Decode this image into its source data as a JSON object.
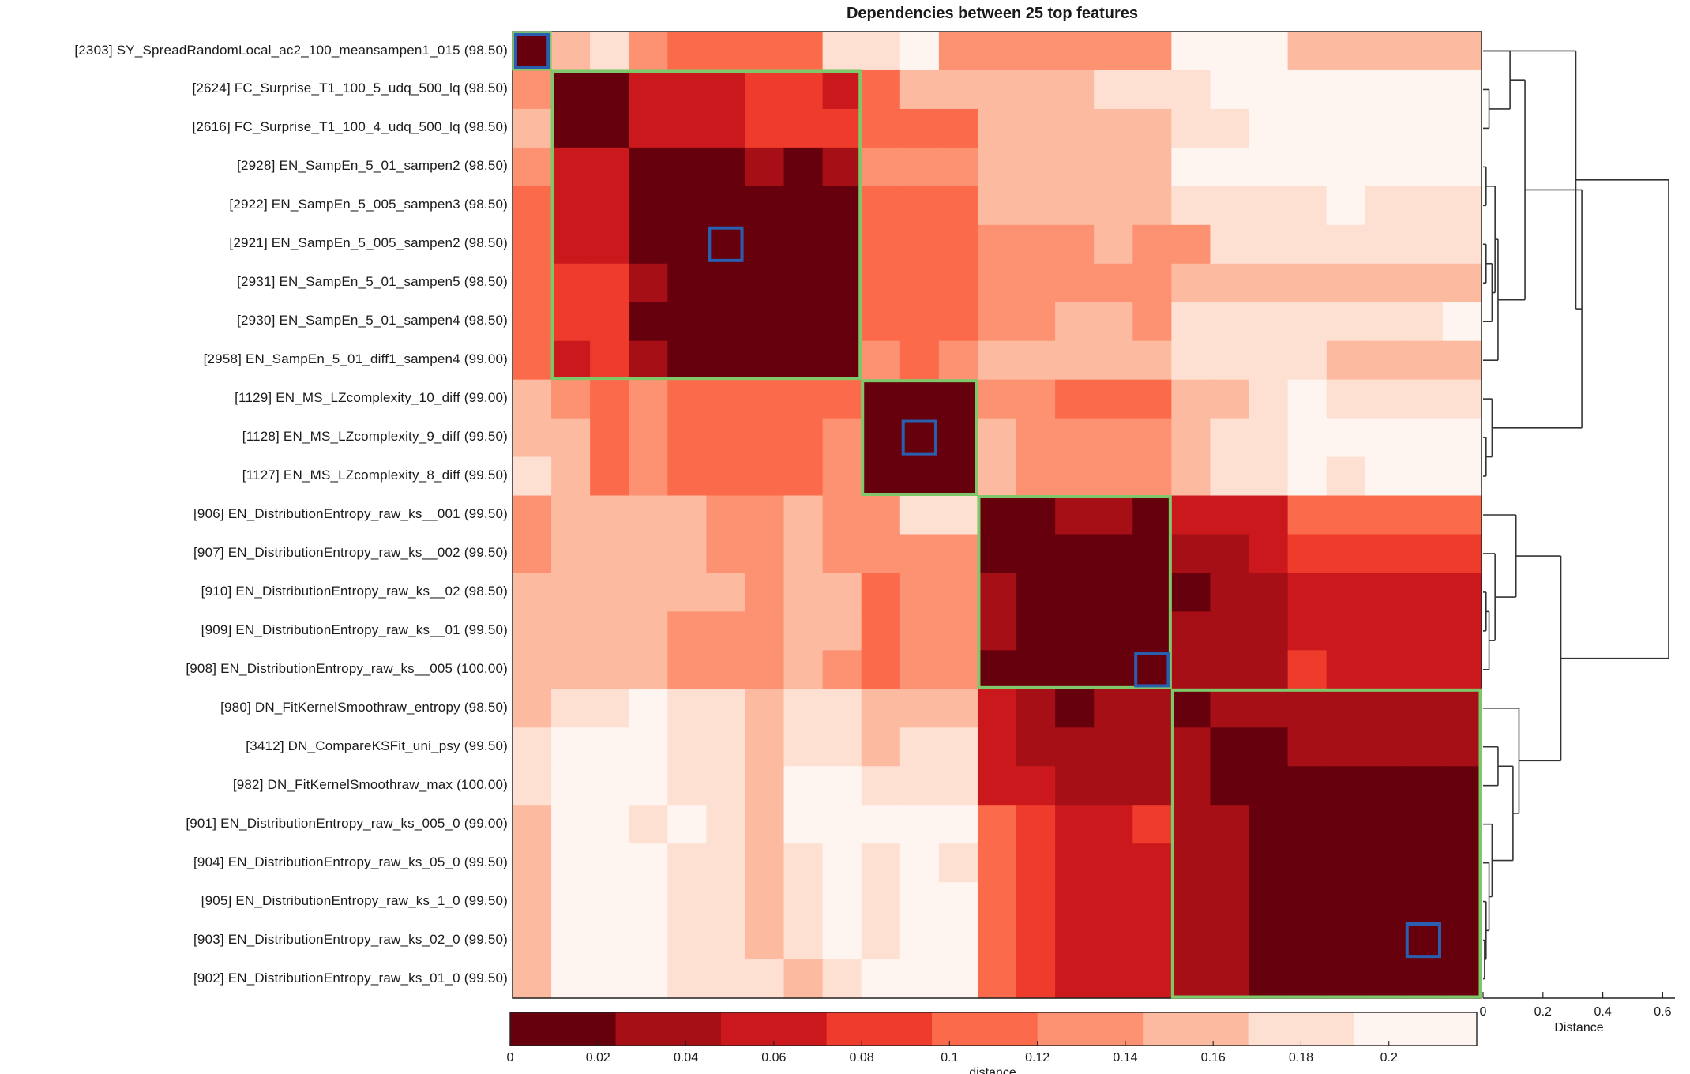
{
  "chart_data": {
    "type": "heatmap",
    "title": "Dependencies between 25 top features",
    "row_labels": [
      "[2303] SY_SpreadRandomLocal_ac2_100_meansampen1_015 (98.50)",
      "[2624] FC_Surprise_T1_100_5_udq_500_lq (98.50)",
      "[2616] FC_Surprise_T1_100_4_udq_500_lq (98.50)",
      "[2928] EN_SampEn_5_01_sampen2 (98.50)",
      "[2922] EN_SampEn_5_005_sampen3 (98.50)",
      "[2921] EN_SampEn_5_005_sampen2 (98.50)",
      "[2931] EN_SampEn_5_01_sampen5 (98.50)",
      "[2930] EN_SampEn_5_01_sampen4 (98.50)",
      "[2958] EN_SampEn_5_01_diff1_sampen4 (99.00)",
      "[1129] EN_MS_LZcomplexity_10_diff (99.00)",
      "[1128] EN_MS_LZcomplexity_9_diff (99.50)",
      "[1127] EN_MS_LZcomplexity_8_diff (99.50)",
      "[906] EN_DistributionEntropy_raw_ks__001 (99.50)",
      "[907] EN_DistributionEntropy_raw_ks__002 (99.50)",
      "[910] EN_DistributionEntropy_raw_ks__02 (98.50)",
      "[909] EN_DistributionEntropy_raw_ks__01 (99.50)",
      "[908] EN_DistributionEntropy_raw_ks__005 (100.00)",
      "[980] DN_FitKernelSmoothraw_entropy (98.50)",
      "[3412] DN_CompareKSFit_uni_psy (99.50)",
      "[982] DN_FitKernelSmoothraw_max (100.00)",
      "[901] EN_DistributionEntropy_raw_ks_005_0 (99.00)",
      "[904] EN_DistributionEntropy_raw_ks_05_0 (99.50)",
      "[905] EN_DistributionEntropy_raw_ks_1_0 (99.50)",
      "[903] EN_DistributionEntropy_raw_ks_02_0 (99.50)",
      "[902] EN_DistributionEntropy_raw_ks_01_0 (99.50)"
    ],
    "bin_matrix": [
      [
        0,
        6,
        7,
        5,
        4,
        4,
        4,
        4,
        7,
        7,
        8,
        5,
        5,
        5,
        5,
        5,
        5,
        8,
        8,
        8,
        6,
        6,
        6,
        6,
        6
      ],
      [
        5,
        0,
        0,
        2,
        2,
        2,
        3,
        3,
        2,
        4,
        6,
        6,
        6,
        6,
        6,
        7,
        7,
        7,
        8,
        8,
        8,
        8,
        8,
        8,
        8
      ],
      [
        6,
        0,
        0,
        2,
        2,
        2,
        3,
        3,
        3,
        4,
        4,
        4,
        6,
        6,
        6,
        6,
        6,
        7,
        7,
        8,
        8,
        8,
        8,
        8,
        8
      ],
      [
        5,
        2,
        2,
        0,
        0,
        0,
        1,
        0,
        1,
        5,
        5,
        5,
        6,
        6,
        6,
        6,
        6,
        8,
        8,
        8,
        8,
        8,
        8,
        8,
        8
      ],
      [
        4,
        2,
        2,
        0,
        0,
        0,
        0,
        0,
        0,
        4,
        4,
        4,
        6,
        6,
        6,
        6,
        6,
        7,
        7,
        7,
        7,
        8,
        7,
        7,
        7
      ],
      [
        4,
        2,
        2,
        0,
        0,
        0,
        0,
        0,
        0,
        4,
        4,
        4,
        5,
        5,
        5,
        6,
        5,
        5,
        7,
        7,
        7,
        7,
        7,
        7,
        7
      ],
      [
        4,
        3,
        3,
        1,
        0,
        0,
        0,
        0,
        0,
        4,
        4,
        4,
        5,
        5,
        5,
        5,
        5,
        6,
        6,
        6,
        6,
        6,
        6,
        6,
        6
      ],
      [
        4,
        3,
        3,
        0,
        0,
        0,
        0,
        0,
        0,
        4,
        4,
        4,
        5,
        5,
        6,
        6,
        5,
        7,
        7,
        7,
        7,
        7,
        7,
        7,
        8
      ],
      [
        4,
        2,
        3,
        1,
        0,
        0,
        0,
        0,
        0,
        5,
        4,
        5,
        6,
        6,
        6,
        6,
        6,
        7,
        7,
        7,
        7,
        6,
        6,
        6,
        6
      ],
      [
        6,
        5,
        4,
        5,
        4,
        4,
        4,
        4,
        4,
        0,
        0,
        0,
        5,
        5,
        4,
        4,
        4,
        6,
        6,
        7,
        8,
        7,
        7,
        7,
        7
      ],
      [
        6,
        6,
        4,
        5,
        4,
        4,
        4,
        4,
        5,
        0,
        0,
        0,
        6,
        5,
        5,
        5,
        5,
        6,
        7,
        7,
        8,
        8,
        8,
        8,
        8
      ],
      [
        7,
        6,
        4,
        5,
        4,
        4,
        4,
        4,
        5,
        0,
        0,
        0,
        6,
        5,
        5,
        5,
        5,
        6,
        7,
        7,
        8,
        7,
        8,
        8,
        8
      ],
      [
        5,
        6,
        6,
        6,
        6,
        5,
        5,
        6,
        5,
        5,
        7,
        7,
        0,
        0,
        1,
        1,
        0,
        2,
        2,
        2,
        4,
        4,
        4,
        4,
        4
      ],
      [
        5,
        6,
        6,
        6,
        6,
        5,
        5,
        6,
        5,
        5,
        5,
        5,
        0,
        0,
        0,
        0,
        0,
        1,
        1,
        2,
        3,
        3,
        3,
        3,
        3
      ],
      [
        6,
        6,
        6,
        6,
        6,
        6,
        5,
        6,
        6,
        4,
        5,
        5,
        1,
        0,
        0,
        0,
        0,
        0,
        1,
        1,
        2,
        2,
        2,
        2,
        2
      ],
      [
        6,
        6,
        6,
        6,
        5,
        5,
        5,
        6,
        6,
        4,
        5,
        5,
        1,
        0,
        0,
        0,
        0,
        1,
        1,
        1,
        2,
        2,
        2,
        2,
        2
      ],
      [
        6,
        6,
        6,
        6,
        5,
        5,
        5,
        6,
        5,
        4,
        5,
        5,
        0,
        0,
        0,
        0,
        0,
        1,
        1,
        1,
        3,
        2,
        2,
        2,
        2
      ],
      [
        6,
        7,
        7,
        8,
        7,
        7,
        6,
        7,
        7,
        6,
        6,
        6,
        2,
        1,
        0,
        1,
        1,
        0,
        1,
        1,
        1,
        1,
        1,
        1,
        1
      ],
      [
        7,
        8,
        8,
        8,
        7,
        7,
        6,
        7,
        7,
        6,
        7,
        7,
        2,
        1,
        1,
        1,
        1,
        1,
        0,
        0,
        1,
        1,
        1,
        1,
        1
      ],
      [
        7,
        8,
        8,
        8,
        7,
        7,
        6,
        8,
        8,
        7,
        7,
        7,
        2,
        2,
        1,
        1,
        1,
        1,
        0,
        0,
        0,
        0,
        0,
        0,
        0
      ],
      [
        6,
        8,
        8,
        7,
        8,
        7,
        6,
        8,
        8,
        8,
        8,
        8,
        4,
        3,
        2,
        2,
        3,
        1,
        1,
        0,
        0,
        0,
        0,
        0,
        0
      ],
      [
        6,
        8,
        8,
        8,
        7,
        7,
        6,
        7,
        8,
        7,
        8,
        7,
        4,
        3,
        2,
        2,
        2,
        1,
        1,
        0,
        0,
        0,
        0,
        0,
        0
      ],
      [
        6,
        8,
        8,
        8,
        7,
        7,
        6,
        7,
        8,
        7,
        8,
        8,
        4,
        3,
        2,
        2,
        2,
        1,
        1,
        0,
        0,
        0,
        0,
        0,
        0
      ],
      [
        6,
        8,
        8,
        8,
        7,
        7,
        6,
        7,
        8,
        7,
        8,
        8,
        4,
        3,
        2,
        2,
        2,
        1,
        1,
        0,
        0,
        0,
        0,
        0,
        0
      ],
      [
        6,
        8,
        8,
        8,
        7,
        7,
        7,
        6,
        7,
        8,
        8,
        8,
        4,
        3,
        2,
        2,
        2,
        1,
        1,
        0,
        0,
        0,
        0,
        0,
        0
      ]
    ],
    "colorbar": {
      "label": "distance",
      "min": 0,
      "max": 0.22,
      "bin_edges": [
        0,
        0.024,
        0.048,
        0.072,
        0.096,
        0.12,
        0.144,
        0.168,
        0.192,
        0.22
      ],
      "ticks": [
        {
          "v": 0,
          "label": "0"
        },
        {
          "v": 0.02,
          "label": "0.02"
        },
        {
          "v": 0.04,
          "label": "0.04"
        },
        {
          "v": 0.06,
          "label": "0.06"
        },
        {
          "v": 0.08,
          "label": "0.08"
        },
        {
          "v": 0.1,
          "label": "0.1"
        },
        {
          "v": 0.12,
          "label": "0.12"
        },
        {
          "v": 0.14,
          "label": "0.14"
        },
        {
          "v": 0.16,
          "label": "0.16"
        },
        {
          "v": 0.18,
          "label": "0.18"
        },
        {
          "v": 0.2,
          "label": "0.2"
        }
      ],
      "colors": [
        "#67000d",
        "#a50f15",
        "#cb181d",
        "#ef3b2c",
        "#fb6a4a",
        "#fc9272",
        "#fcbba1",
        "#fee0d2",
        "#fff5f0"
      ]
    },
    "clusters": [
      {
        "start": 0,
        "end": 0
      },
      {
        "start": 1,
        "end": 8
      },
      {
        "start": 9,
        "end": 11
      },
      {
        "start": 12,
        "end": 16
      },
      {
        "start": 17,
        "end": 24
      }
    ],
    "cluster_centers": [
      0,
      5,
      10,
      16,
      23
    ],
    "dendrogram": {
      "xlabel": "Distance",
      "xticks": [
        {
          "v": 0,
          "label": "0"
        },
        {
          "v": 0.2,
          "label": "0.2"
        },
        {
          "v": 0.4,
          "label": "0.4"
        },
        {
          "v": 0.6,
          "label": "0.6"
        }
      ],
      "xlim": [
        0,
        0.62
      ],
      "merges": [
        {
          "a": "l2",
          "b": "l3",
          "h": 0.02,
          "id": "m1"
        },
        {
          "a": "l4",
          "b": "l5",
          "h": 0.01,
          "id": "m2"
        },
        {
          "a": "l6",
          "b": "l7",
          "h": 0.01,
          "id": "m3"
        },
        {
          "a": "m3",
          "b": "l8",
          "h": 0.03,
          "id": "m4"
        },
        {
          "a": "m2",
          "b": "m4",
          "h": 0.04,
          "id": "m5"
        },
        {
          "a": "m5",
          "b": "l9",
          "h": 0.05,
          "id": "m6"
        },
        {
          "a": "l1",
          "b": "m1",
          "h": 0.09,
          "id": "m7"
        },
        {
          "a": "m7",
          "b": "m6",
          "h": 0.14,
          "id": "m8"
        },
        {
          "a": "l11",
          "b": "l12",
          "h": 0.01,
          "id": "m9"
        },
        {
          "a": "l10",
          "b": "m9",
          "h": 0.03,
          "id": "m10"
        },
        {
          "a": "m8",
          "b": "m10",
          "h": 0.33,
          "id": "m11"
        },
        {
          "a": "l1x",
          "b": "m11",
          "h": 0.31,
          "id": "m12"
        },
        {
          "a": "l15",
          "b": "l16",
          "h": 0.01,
          "id": "m13"
        },
        {
          "a": "m13",
          "b": "l17",
          "h": 0.02,
          "id": "m14"
        },
        {
          "a": "l14",
          "b": "m14",
          "h": 0.04,
          "id": "m15"
        },
        {
          "a": "l13",
          "b": "m15",
          "h": 0.11,
          "id": "m16"
        },
        {
          "a": "l24",
          "b": "l25",
          "h": 0.005,
          "id": "m17"
        },
        {
          "a": "l23",
          "b": "m17",
          "h": 0.01,
          "id": "m18"
        },
        {
          "a": "l22",
          "b": "m18",
          "h": 0.02,
          "id": "m19"
        },
        {
          "a": "l21",
          "b": "m19",
          "h": 0.03,
          "id": "m20"
        },
        {
          "a": "l19",
          "b": "l20",
          "h": 0.05,
          "id": "m21"
        },
        {
          "a": "m21",
          "b": "m20",
          "h": 0.1,
          "id": "m22"
        },
        {
          "a": "l18",
          "b": "m22",
          "h": 0.12,
          "id": "m23"
        },
        {
          "a": "m16",
          "b": "m23",
          "h": 0.26,
          "id": "m24"
        },
        {
          "a": "m12",
          "b": "m24",
          "h": 0.62,
          "id": "m25"
        }
      ]
    }
  }
}
